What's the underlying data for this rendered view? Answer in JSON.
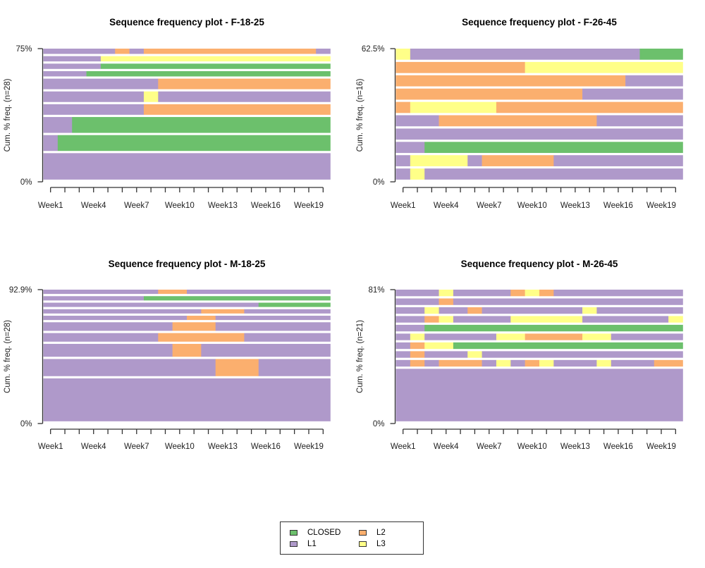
{
  "states": {
    "CLOSED": {
      "label": "CLOSED",
      "color": "#6CC06C"
    },
    "L1": {
      "label": "L1",
      "color": "#AF99CA"
    },
    "L2": {
      "label": "L2",
      "color": "#FBAF6E"
    },
    "L3": {
      "label": "L3",
      "color": "#FFFF88"
    }
  },
  "legend": {
    "items": [
      {
        "state": "CLOSED",
        "label": "CLOSED"
      },
      {
        "state": "L2",
        "label": "L2"
      },
      {
        "state": "L1",
        "label": "L1"
      },
      {
        "state": "L3",
        "label": "L3"
      }
    ]
  },
  "chart_data": [
    {
      "type": "heatmap",
      "title": "Sequence frequency plot -  F-18-25",
      "ylabel": "Cum. % freq. (n=28)",
      "xlabel": "",
      "n": 28,
      "y_top_label": "75%",
      "y_bottom_label": "0%",
      "x_tick_labels": [
        "Week1",
        "",
        "",
        "Week4",
        "",
        "",
        "Week7",
        "",
        "",
        "Week10",
        "",
        "",
        "Week13",
        "",
        "",
        "Week16",
        "",
        "",
        "Week19",
        ""
      ],
      "weeks": 20,
      "sequences": [
        {
          "count": 1,
          "runs": [
            [
              "L1",
              5
            ],
            [
              "L2",
              1
            ],
            [
              "L1",
              1
            ],
            [
              "L2",
              12
            ],
            [
              "L1",
              1
            ]
          ]
        },
        {
          "count": 1,
          "runs": [
            [
              "L1",
              4
            ],
            [
              "L3",
              16
            ]
          ]
        },
        {
          "count": 1,
          "runs": [
            [
              "L1",
              4
            ],
            [
              "CLOSED",
              16
            ]
          ]
        },
        {
          "count": 1,
          "runs": [
            [
              "L1",
              3
            ],
            [
              "CLOSED",
              17
            ]
          ]
        },
        {
          "count": 2,
          "runs": [
            [
              "L1",
              8
            ],
            [
              "L2",
              12
            ]
          ]
        },
        {
          "count": 2,
          "runs": [
            [
              "L1",
              7
            ],
            [
              "L3",
              1
            ],
            [
              "L1",
              12
            ]
          ]
        },
        {
          "count": 2,
          "runs": [
            [
              "L1",
              7
            ],
            [
              "L2",
              13
            ]
          ]
        },
        {
          "count": 3,
          "runs": [
            [
              "L1",
              2
            ],
            [
              "CLOSED",
              18
            ]
          ]
        },
        {
          "count": 3,
          "runs": [
            [
              "L1",
              1
            ],
            [
              "CLOSED",
              19
            ]
          ]
        },
        {
          "count": 5,
          "runs": [
            [
              "L1",
              20
            ]
          ]
        }
      ]
    },
    {
      "type": "heatmap",
      "title": "Sequence frequency plot -  F-26-45",
      "ylabel": "Cum. % freq. (n=16)",
      "xlabel": "",
      "n": 16,
      "y_top_label": "62.5%",
      "y_bottom_label": "0%",
      "x_tick_labels": [
        "Week1",
        "",
        "",
        "Week4",
        "",
        "",
        "Week7",
        "",
        "",
        "Week10",
        "",
        "",
        "Week13",
        "",
        "",
        "Week16",
        "",
        "",
        "Week19",
        ""
      ],
      "weeks": 20,
      "sequences": [
        {
          "count": 1,
          "runs": [
            [
              "L3",
              1
            ],
            [
              "L1",
              16
            ],
            [
              "CLOSED",
              3
            ]
          ]
        },
        {
          "count": 1,
          "runs": [
            [
              "L2",
              9
            ],
            [
              "L3",
              11
            ]
          ]
        },
        {
          "count": 1,
          "runs": [
            [
              "L2",
              16
            ],
            [
              "L1",
              4
            ]
          ]
        },
        {
          "count": 1,
          "runs": [
            [
              "L2",
              13
            ],
            [
              "L1",
              7
            ]
          ]
        },
        {
          "count": 1,
          "runs": [
            [
              "L2",
              1
            ],
            [
              "L3",
              6
            ],
            [
              "L2",
              13
            ]
          ]
        },
        {
          "count": 1,
          "runs": [
            [
              "L1",
              3
            ],
            [
              "L2",
              11
            ],
            [
              "L1",
              6
            ]
          ]
        },
        {
          "count": 1,
          "runs": [
            [
              "L1",
              20
            ]
          ]
        },
        {
          "count": 1,
          "runs": [
            [
              "L1",
              2
            ],
            [
              "CLOSED",
              18
            ]
          ]
        },
        {
          "count": 1,
          "runs": [
            [
              "L1",
              1
            ],
            [
              "L3",
              4
            ],
            [
              "L1",
              1
            ],
            [
              "L2",
              5
            ],
            [
              "L1",
              9
            ]
          ]
        },
        {
          "count": 1,
          "runs": [
            [
              "L1",
              1
            ],
            [
              "L3",
              1
            ],
            [
              "L1",
              18
            ]
          ]
        }
      ]
    },
    {
      "type": "heatmap",
      "title": "Sequence frequency plot -  M-18-25",
      "ylabel": "Cum. % freq. (n=28)",
      "xlabel": "",
      "n": 28,
      "y_top_label": "92.9%",
      "y_bottom_label": "0%",
      "x_tick_labels": [
        "Week1",
        "",
        "",
        "Week4",
        "",
        "",
        "Week7",
        "",
        "",
        "Week10",
        "",
        "",
        "Week13",
        "",
        "",
        "Week16",
        "",
        "",
        "Week19",
        ""
      ],
      "weeks": 20,
      "sequences": [
        {
          "count": 1,
          "runs": [
            [
              "L1",
              8
            ],
            [
              "L2",
              2
            ],
            [
              "L1",
              10
            ]
          ]
        },
        {
          "count": 1,
          "runs": [
            [
              "L1",
              7
            ],
            [
              "CLOSED",
              13
            ]
          ]
        },
        {
          "count": 1,
          "runs": [
            [
              "L1",
              15
            ],
            [
              "CLOSED",
              5
            ]
          ]
        },
        {
          "count": 1,
          "runs": [
            [
              "L1",
              11
            ],
            [
              "L2",
              3
            ],
            [
              "L1",
              6
            ]
          ]
        },
        {
          "count": 1,
          "runs": [
            [
              "L1",
              10
            ],
            [
              "L2",
              2
            ],
            [
              "L1",
              8
            ]
          ]
        },
        {
          "count": 2,
          "runs": [
            [
              "L1",
              9
            ],
            [
              "L2",
              3
            ],
            [
              "L1",
              8
            ]
          ]
        },
        {
          "count": 2,
          "runs": [
            [
              "L1",
              8
            ],
            [
              "L2",
              6
            ],
            [
              "L1",
              6
            ]
          ]
        },
        {
          "count": 3,
          "runs": [
            [
              "L1",
              9
            ],
            [
              "L2",
              2
            ],
            [
              "L1",
              9
            ]
          ]
        },
        {
          "count": 4,
          "runs": [
            [
              "L1",
              12
            ],
            [
              "L2",
              3
            ],
            [
              "L1",
              5
            ]
          ]
        },
        {
          "count": 10,
          "runs": [
            [
              "L1",
              20
            ]
          ]
        }
      ]
    },
    {
      "type": "heatmap",
      "title": "Sequence frequency plot -  M-26-45",
      "ylabel": "Cum. % freq. (n=21)",
      "xlabel": "",
      "n": 21,
      "y_top_label": "81%",
      "y_bottom_label": "0%",
      "x_tick_labels": [
        "Week1",
        "",
        "",
        "Week4",
        "",
        "",
        "Week7",
        "",
        "",
        "Week10",
        "",
        "",
        "Week13",
        "",
        "",
        "Week16",
        "",
        "",
        "Week19",
        ""
      ],
      "weeks": 20,
      "sequences": [
        {
          "count": 1,
          "runs": [
            [
              "L1",
              3
            ],
            [
              "L3",
              1
            ],
            [
              "L1",
              4
            ],
            [
              "L2",
              1
            ],
            [
              "L3",
              1
            ],
            [
              "L2",
              1
            ],
            [
              "L1",
              9
            ]
          ]
        },
        {
          "count": 1,
          "runs": [
            [
              "L1",
              3
            ],
            [
              "L2",
              1
            ],
            [
              "L1",
              16
            ]
          ]
        },
        {
          "count": 1,
          "runs": [
            [
              "L1",
              2
            ],
            [
              "L3",
              1
            ],
            [
              "L1",
              2
            ],
            [
              "L2",
              1
            ],
            [
              "L1",
              7
            ],
            [
              "L3",
              1
            ],
            [
              "L1",
              6
            ]
          ]
        },
        {
          "count": 1,
          "runs": [
            [
              "L1",
              2
            ],
            [
              "L2",
              1
            ],
            [
              "L3",
              1
            ],
            [
              "L1",
              4
            ],
            [
              "L3",
              5
            ],
            [
              "L1",
              6
            ],
            [
              "L3",
              1
            ]
          ]
        },
        {
          "count": 1,
          "runs": [
            [
              "L1",
              2
            ],
            [
              "CLOSED",
              18
            ]
          ]
        },
        {
          "count": 1,
          "runs": [
            [
              "L1",
              1
            ],
            [
              "L3",
              1
            ],
            [
              "L1",
              5
            ],
            [
              "L3",
              2
            ],
            [
              "L2",
              4
            ],
            [
              "L3",
              2
            ],
            [
              "L1",
              5
            ]
          ]
        },
        {
          "count": 1,
          "runs": [
            [
              "L1",
              1
            ],
            [
              "L2",
              1
            ],
            [
              "L3",
              2
            ],
            [
              "CLOSED",
              16
            ]
          ]
        },
        {
          "count": 1,
          "runs": [
            [
              "L1",
              1
            ],
            [
              "L2",
              1
            ],
            [
              "L1",
              3
            ],
            [
              "L3",
              1
            ],
            [
              "L1",
              14
            ]
          ]
        },
        {
          "count": 1,
          "runs": [
            [
              "L1",
              1
            ],
            [
              "L2",
              1
            ],
            [
              "L1",
              1
            ],
            [
              "L2",
              3
            ],
            [
              "L1",
              1
            ],
            [
              "L3",
              1
            ],
            [
              "L1",
              1
            ],
            [
              "L2",
              1
            ],
            [
              "L3",
              1
            ],
            [
              "L1",
              3
            ],
            [
              "L3",
              1
            ],
            [
              "L1",
              3
            ],
            [
              "L2",
              2
            ]
          ]
        },
        {
          "count": 8,
          "runs": [
            [
              "L1",
              20
            ]
          ]
        }
      ]
    }
  ]
}
